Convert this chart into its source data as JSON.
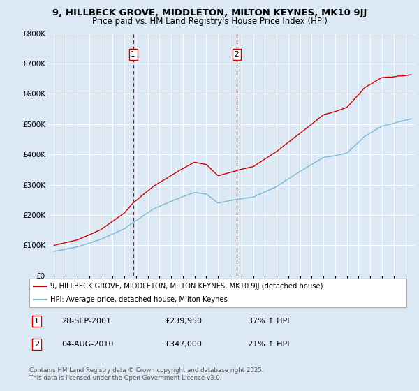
{
  "title": "9, HILLBECK GROVE, MIDDLETON, MILTON KEYNES, MK10 9JJ",
  "subtitle": "Price paid vs. HM Land Registry's House Price Index (HPI)",
  "background_color": "#dce9f5",
  "plot_bg_color": "#dce9f5",
  "hpi_line_color": "#7ab8d9",
  "price_line_color": "#cc0000",
  "vline_color": "#cc0000",
  "ylim": [
    0,
    800000
  ],
  "yticks": [
    0,
    100000,
    200000,
    300000,
    400000,
    500000,
    600000,
    700000,
    800000
  ],
  "xlim_start": 1994.5,
  "xlim_end": 2025.8,
  "legend_entry1": "9, HILLBECK GROVE, MIDDLETON, MILTON KEYNES, MK10 9JJ (detached house)",
  "legend_entry2": "HPI: Average price, detached house, Milton Keynes",
  "transaction1_date": 2001.75,
  "transaction1_price": 239950,
  "transaction1_label": "1",
  "transaction2_date": 2010.58,
  "transaction2_price": 347000,
  "transaction2_label": "2",
  "footer_text": "Contains HM Land Registry data © Crown copyright and database right 2025.\nThis data is licensed under the Open Government Licence v3.0.",
  "table_data": [
    {
      "num": "1",
      "date": "28-SEP-2001",
      "price": "£239,950",
      "change": "37% ↑ HPI"
    },
    {
      "num": "2",
      "date": "04-AUG-2010",
      "price": "£347,000",
      "change": "21% ↑ HPI"
    }
  ]
}
